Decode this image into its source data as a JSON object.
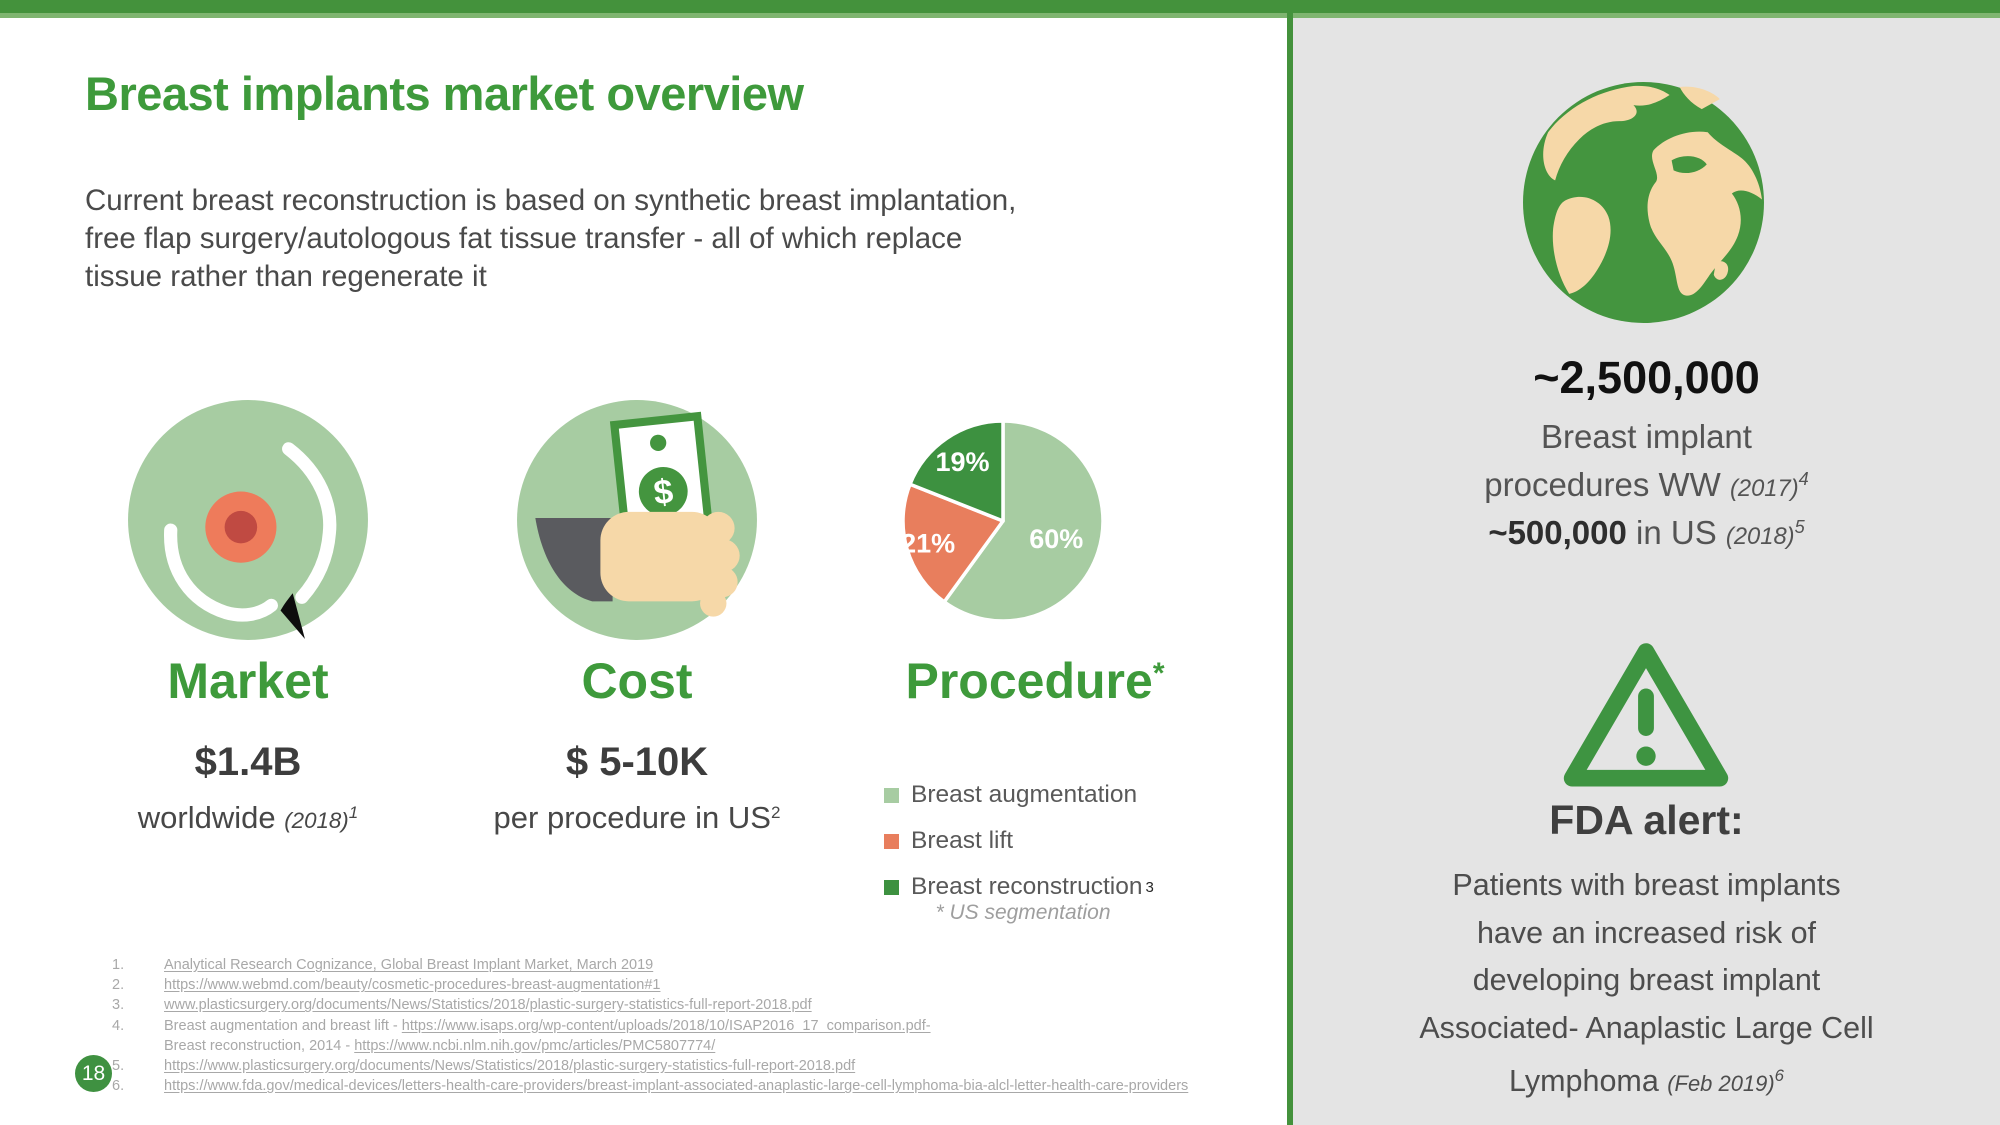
{
  "slide": {
    "title": "Breast implants market overview",
    "page_number": "18"
  },
  "intro": {
    "lines": [
      "Current breast reconstruction is based on synthetic breast implantation,",
      "free flap surgery/autologous fat tissue transfer - all of which replace",
      "tissue rather than regenerate it"
    ]
  },
  "market": {
    "heading": "Market",
    "value": "$1.4B",
    "caption": "worldwide ",
    "caption_note": "(2018)",
    "caption_sup": "1"
  },
  "cost": {
    "heading": "Cost",
    "value": "$ 5-10K",
    "caption": "per procedure in US",
    "caption_sup": "2"
  },
  "procedure": {
    "heading": "Procedure",
    "heading_sup": "*",
    "legend": [
      {
        "label": "Breast augmentation",
        "sup": "",
        "color": "#A7CCA2"
      },
      {
        "label": "Breast lift",
        "sup": "",
        "color": "#E87E5D"
      },
      {
        "label": "Breast reconstruction",
        "sup": "3",
        "color": "#3D9140"
      }
    ],
    "seg_note": "* US segmentation"
  },
  "chart_data": {
    "type": "pie",
    "title": "Procedure (US segmentation)",
    "labels": [
      "Breast augmentation",
      "Breast lift",
      "Breast reconstruction"
    ],
    "values": [
      60,
      21,
      19
    ],
    "unit": "%",
    "slice_labels": [
      "60%",
      "21%",
      "19%"
    ],
    "colors": [
      "#A7CCA2",
      "#E87E5D",
      "#3D9140"
    ],
    "start_angle_deg": 0,
    "direction": "clockwise",
    "legend_position": "below-right"
  },
  "sidebar": {
    "ww": {
      "value": "~2,500,000",
      "line1": "Breast implant",
      "line2": "procedures WW ",
      "line2_note": "(2017)",
      "line2_sup": "4",
      "line3_bold": "~500,000",
      "line3_rest": " in US ",
      "line3_note": "(2018)",
      "line3_sup": "5"
    },
    "fda": {
      "heading": "FDA alert:",
      "lines": [
        "Patients with breast implants",
        "have an increased risk of",
        "developing breast implant",
        "Associated- Anaplastic Large Cell"
      ],
      "last_line": "Lymphoma ",
      "last_note": "(Feb 2019)",
      "last_sup": "6"
    }
  },
  "footnotes": [
    {
      "num": "1.",
      "segments": [
        {
          "text": "Analytical Research Cognizance, Global Breast Implant Market, March 2019",
          "link": true
        }
      ]
    },
    {
      "num": "2.",
      "segments": [
        {
          "text": "https://www.webmd.com/beauty/cosmetic-procedures-breast-augmentation#1",
          "link": true
        }
      ]
    },
    {
      "num": "3.",
      "segments": [
        {
          "text": "www.plasticsurgery.org/documents/News/Statistics/2018/plastic-surgery-statistics-full-report-2018.pdf",
          "link": true
        }
      ]
    },
    {
      "num": "4.",
      "segments": [
        {
          "text": "Breast augmentation and breast lift - ",
          "link": false
        },
        {
          "text": "https://www.isaps.org/wp-content/uploads/2018/10/ISAP2016_17_comparison.pdf-",
          "link": true
        }
      ]
    },
    {
      "num": "",
      "segments": [
        {
          "text": "Breast reconstruction, 2014 - ",
          "link": false
        },
        {
          "text": "https://www.ncbi.nlm.nih.gov/pmc/articles/PMC5807774/",
          "link": true
        }
      ]
    },
    {
      "num": "5.",
      "segments": [
        {
          "text": "https://www.plasticsurgery.org/documents/News/Statistics/2018/plastic-surgery-statistics-full-report-2018.pdf",
          "link": true
        }
      ]
    },
    {
      "num": "6.",
      "segments": [
        {
          "text": "https://www.fda.gov/medical-devices/letters-health-care-providers/breast-implant-associated-anaplastic-large-cell-lymphoma-bia-alcl-letter-health-care-providers",
          "link": true
        }
      ]
    }
  ],
  "icons": {
    "market": "breast-icon",
    "cost": "money-hand-icon",
    "procedure": "pie-chart",
    "worldwide": "globe-icon",
    "alert": "warning-triangle-icon"
  },
  "colors": {
    "brand_green": "#44923C",
    "light_green": "#A7CCA2",
    "salmon": "#E87E5D",
    "dark_green": "#3D9140",
    "panel_gray": "#E4E4E4",
    "tan": "#F6D8A8",
    "text_dark": "#3d3d3d",
    "text_gray": "#595959",
    "footnote_gray": "#A8A8A8"
  }
}
